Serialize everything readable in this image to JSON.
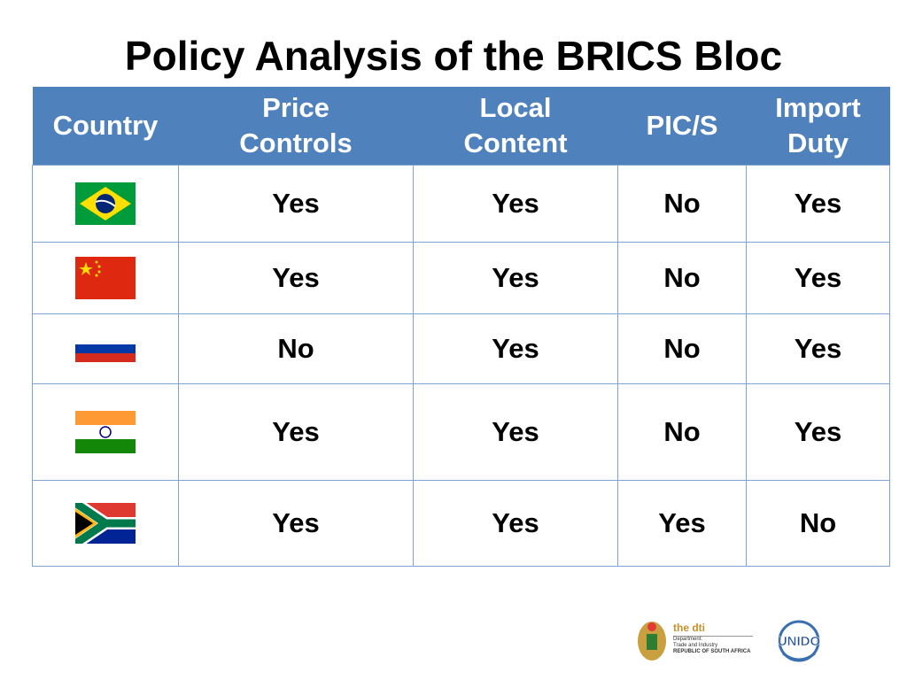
{
  "title": "Policy Analysis of the BRICS Bloc",
  "table": {
    "header": [
      [
        "Country"
      ],
      [
        "Price",
        "Controls"
      ],
      [
        "Local",
        "Content"
      ],
      [
        "PIC/S"
      ],
      [
        "Import",
        "Duty"
      ]
    ],
    "rows": [
      [
        "Yes",
        "Yes",
        "No",
        "Yes"
      ],
      [
        "Yes",
        "Yes",
        "No",
        "Yes"
      ],
      [
        "No",
        "Yes",
        "No",
        "Yes"
      ],
      [
        "Yes",
        "Yes",
        "No",
        "Yes"
      ],
      [
        "Yes",
        "Yes",
        "Yes",
        "No"
      ]
    ]
  },
  "footer": {
    "dti": {
      "name": "the dti",
      "lines": [
        "Department:",
        "Trade and Industry",
        "REPUBLIC OF SOUTH AFRICA"
      ]
    },
    "unido": "UNIDO"
  }
}
